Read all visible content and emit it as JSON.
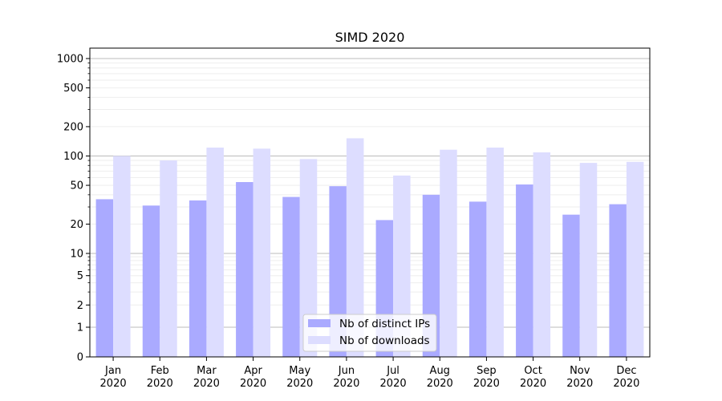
{
  "chart_data": {
    "type": "bar",
    "title": "SIMD 2020",
    "xlabel": "",
    "ylabel": "",
    "yscale": "symlog",
    "yticks": [
      0,
      1,
      2,
      5,
      10,
      20,
      50,
      100,
      200,
      500,
      1000
    ],
    "ylim": [
      0,
      1300
    ],
    "grid": true,
    "legend_position": "bottom-center",
    "categories": [
      {
        "month": "Jan",
        "year": "2020"
      },
      {
        "month": "Feb",
        "year": "2020"
      },
      {
        "month": "Mar",
        "year": "2020"
      },
      {
        "month": "Apr",
        "year": "2020"
      },
      {
        "month": "May",
        "year": "2020"
      },
      {
        "month": "Jun",
        "year": "2020"
      },
      {
        "month": "Jul",
        "year": "2020"
      },
      {
        "month": "Aug",
        "year": "2020"
      },
      {
        "month": "Sep",
        "year": "2020"
      },
      {
        "month": "Oct",
        "year": "2020"
      },
      {
        "month": "Nov",
        "year": "2020"
      },
      {
        "month": "Dec",
        "year": "2020"
      }
    ],
    "series": [
      {
        "name": "Nb of distinct IPs",
        "color": "#aaaaff",
        "values": [
          36,
          31,
          35,
          54,
          38,
          49,
          22,
          40,
          34,
          51,
          25,
          32
        ]
      },
      {
        "name": "Nb of downloads",
        "color": "#ddddff",
        "values": [
          100,
          90,
          122,
          119,
          93,
          152,
          63,
          116,
          122,
          109,
          85,
          87
        ]
      }
    ]
  }
}
